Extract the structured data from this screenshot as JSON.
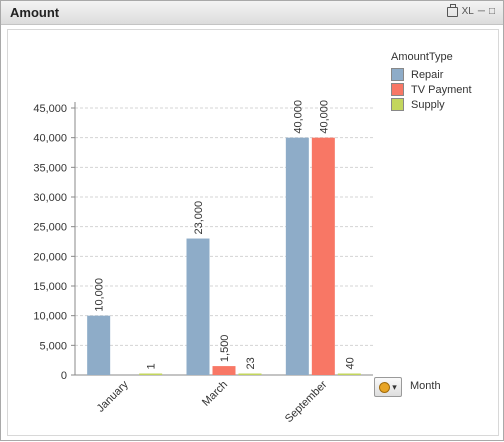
{
  "window": {
    "title": "Amount",
    "xl_label": "XL"
  },
  "legend": {
    "title": "AmountType",
    "items": [
      {
        "label": "Repair",
        "color": "#8eacc8"
      },
      {
        "label": "TV Payment",
        "color": "#f87765"
      },
      {
        "label": "Supply",
        "color": "#c3d65d"
      }
    ]
  },
  "dimension": {
    "label": "Month",
    "cycle_icon": "cycle-icon"
  },
  "chart_data": {
    "type": "bar",
    "categories": [
      "January",
      "March",
      "September"
    ],
    "series": [
      {
        "name": "Repair",
        "values": [
          10000,
          23000,
          40000
        ],
        "labels": [
          "10,000",
          "23,000",
          "40,000"
        ]
      },
      {
        "name": "TV Payment",
        "values": [
          0,
          1500,
          40000
        ],
        "labels": [
          "",
          "1,500",
          "40,000"
        ]
      },
      {
        "name": "Supply",
        "values": [
          1,
          23,
          40
        ],
        "labels": [
          "1",
          "23",
          "40"
        ]
      }
    ],
    "yticks": [
      0,
      5000,
      10000,
      15000,
      20000,
      25000,
      30000,
      35000,
      40000,
      45000
    ],
    "ytick_labels": [
      "0",
      "5,000",
      "10,000",
      "15,000",
      "20,000",
      "25,000",
      "30,000",
      "35,000",
      "40,000",
      "45,000"
    ],
    "ylim": [
      0,
      45000
    ],
    "grid": true,
    "colors": [
      "#8eacc8",
      "#f87765",
      "#c3d65d"
    ]
  }
}
